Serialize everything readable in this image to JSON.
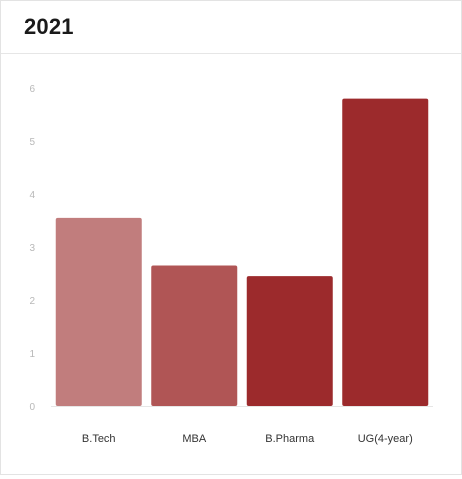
{
  "card": {
    "title": "2021"
  },
  "chart_data": {
    "type": "bar",
    "title": "2021",
    "categories": [
      "B.Tech",
      "MBA",
      "B.Pharma",
      "UG(4-year)"
    ],
    "values": [
      3.55,
      2.65,
      2.45,
      5.8
    ],
    "bar_colors": [
      "#c17d7d",
      "#b05555",
      "#9c2a2c",
      "#9c2a2c"
    ],
    "ylim": [
      0,
      6
    ],
    "yticks": [
      "0",
      "1",
      "2",
      "3",
      "4",
      "5",
      "6"
    ],
    "grid": false,
    "xlabel": "",
    "ylabel": ""
  }
}
